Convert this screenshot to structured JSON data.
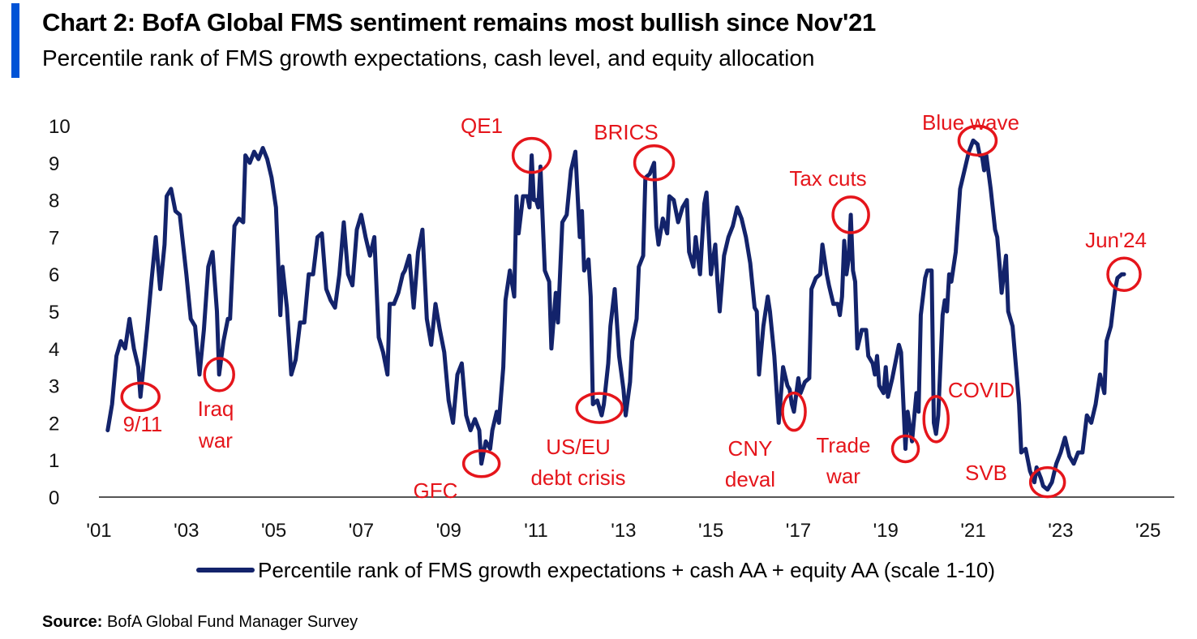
{
  "header": {
    "title": "Chart 2: BofA Global FMS sentiment remains most bullish since Nov'21",
    "subtitle": "Percentile rank of FMS growth expectations, cash level, and equity allocation",
    "accent_color": "#0053d6"
  },
  "footer": {
    "source_label": "Source:",
    "source_text": "BofA Global Fund Manager Survey"
  },
  "chart_data": {
    "type": "line",
    "title": "Chart 2: BofA Global FMS sentiment remains most bullish since Nov'21",
    "subtitle": "Percentile rank of FMS growth expectations, cash level, and equity allocation",
    "xlabel": "",
    "ylabel": "",
    "ylim": [
      0,
      10
    ],
    "xlim": [
      2001,
      2025.6
    ],
    "x_ticks": [
      2001,
      2003,
      2005,
      2007,
      2009,
      2011,
      2013,
      2015,
      2017,
      2019,
      2021,
      2023,
      2025
    ],
    "x_tick_labels": [
      "'01",
      "'03",
      "'05",
      "'07",
      "'09",
      "'11",
      "'13",
      "'15",
      "'17",
      "'19",
      "'21",
      "'23",
      "'25"
    ],
    "y_ticks": [
      0,
      1,
      2,
      3,
      4,
      5,
      6,
      7,
      8,
      9,
      10
    ],
    "grid": false,
    "legend_position": "bottom",
    "line_color": "#13236b",
    "annotation_color": "#e5151b",
    "series": [
      {
        "name": "Percentile rank of FMS growth expectations + cash AA + equity AA (scale 1-10)",
        "points": [
          [
            2001.2,
            1.8
          ],
          [
            2001.3,
            2.5
          ],
          [
            2001.4,
            3.8
          ],
          [
            2001.5,
            4.2
          ],
          [
            2001.6,
            4.0
          ],
          [
            2001.7,
            4.8
          ],
          [
            2001.8,
            4.0
          ],
          [
            2001.9,
            3.5
          ],
          [
            2001.95,
            2.7
          ],
          [
            2002.0,
            3.3
          ],
          [
            2002.1,
            4.5
          ],
          [
            2002.2,
            5.8
          ],
          [
            2002.3,
            7.0
          ],
          [
            2002.4,
            5.6
          ],
          [
            2002.5,
            6.8
          ],
          [
            2002.55,
            8.1
          ],
          [
            2002.65,
            8.3
          ],
          [
            2002.75,
            7.7
          ],
          [
            2002.85,
            7.6
          ],
          [
            2003.0,
            6.0
          ],
          [
            2003.1,
            4.8
          ],
          [
            2003.2,
            4.6
          ],
          [
            2003.3,
            3.3
          ],
          [
            2003.4,
            4.5
          ],
          [
            2003.5,
            6.2
          ],
          [
            2003.6,
            6.6
          ],
          [
            2003.7,
            5.0
          ],
          [
            2003.75,
            3.3
          ],
          [
            2003.85,
            4.2
          ],
          [
            2003.95,
            4.8
          ],
          [
            2004.0,
            4.8
          ],
          [
            2004.1,
            7.3
          ],
          [
            2004.2,
            7.5
          ],
          [
            2004.3,
            7.4
          ],
          [
            2004.35,
            9.2
          ],
          [
            2004.45,
            9.0
          ],
          [
            2004.55,
            9.3
          ],
          [
            2004.65,
            9.1
          ],
          [
            2004.75,
            9.4
          ],
          [
            2004.85,
            9.1
          ],
          [
            2004.95,
            8.6
          ],
          [
            2005.05,
            7.8
          ],
          [
            2005.15,
            4.9
          ],
          [
            2005.2,
            6.2
          ],
          [
            2005.3,
            5.1
          ],
          [
            2005.4,
            3.3
          ],
          [
            2005.5,
            3.7
          ],
          [
            2005.6,
            4.7
          ],
          [
            2005.7,
            4.7
          ],
          [
            2005.8,
            6.0
          ],
          [
            2005.9,
            6.0
          ],
          [
            2006.0,
            7.0
          ],
          [
            2006.1,
            7.1
          ],
          [
            2006.2,
            5.6
          ],
          [
            2006.3,
            5.3
          ],
          [
            2006.4,
            5.1
          ],
          [
            2006.5,
            6.0
          ],
          [
            2006.6,
            7.4
          ],
          [
            2006.7,
            6.0
          ],
          [
            2006.8,
            5.7
          ],
          [
            2006.9,
            7.2
          ],
          [
            2006.95,
            7.4
          ],
          [
            2007.0,
            7.6
          ],
          [
            2007.1,
            7.0
          ],
          [
            2007.2,
            6.5
          ],
          [
            2007.3,
            7.0
          ],
          [
            2007.4,
            4.3
          ],
          [
            2007.5,
            3.9
          ],
          [
            2007.6,
            3.3
          ],
          [
            2007.65,
            5.2
          ],
          [
            2007.75,
            5.2
          ],
          [
            2007.85,
            5.5
          ],
          [
            2007.95,
            6.0
          ],
          [
            2008.0,
            6.1
          ],
          [
            2008.1,
            6.5
          ],
          [
            2008.2,
            5.1
          ],
          [
            2008.3,
            6.6
          ],
          [
            2008.4,
            7.2
          ],
          [
            2008.5,
            4.8
          ],
          [
            2008.6,
            4.1
          ],
          [
            2008.7,
            5.2
          ],
          [
            2008.8,
            4.5
          ],
          [
            2008.9,
            3.9
          ],
          [
            2009.0,
            2.6
          ],
          [
            2009.1,
            2.0
          ],
          [
            2009.2,
            3.3
          ],
          [
            2009.3,
            3.6
          ],
          [
            2009.4,
            2.2
          ],
          [
            2009.5,
            1.8
          ],
          [
            2009.6,
            2.1
          ],
          [
            2009.7,
            1.8
          ],
          [
            2009.75,
            0.9
          ],
          [
            2009.85,
            1.5
          ],
          [
            2009.95,
            1.3
          ],
          [
            2010.0,
            1.8
          ],
          [
            2010.1,
            2.3
          ],
          [
            2010.15,
            2.0
          ],
          [
            2010.25,
            3.5
          ],
          [
            2010.3,
            5.3
          ],
          [
            2010.4,
            6.1
          ],
          [
            2010.5,
            5.4
          ],
          [
            2010.55,
            8.1
          ],
          [
            2010.6,
            7.1
          ],
          [
            2010.7,
            8.1
          ],
          [
            2010.8,
            8.1
          ],
          [
            2010.85,
            7.8
          ],
          [
            2010.9,
            9.2
          ],
          [
            2010.95,
            8.0
          ],
          [
            2011.0,
            8.0
          ],
          [
            2011.05,
            7.8
          ],
          [
            2011.1,
            8.9
          ],
          [
            2011.2,
            6.1
          ],
          [
            2011.3,
            5.8
          ],
          [
            2011.35,
            4.0
          ],
          [
            2011.45,
            5.5
          ],
          [
            2011.5,
            4.7
          ],
          [
            2011.6,
            7.4
          ],
          [
            2011.7,
            7.6
          ],
          [
            2011.8,
            8.8
          ],
          [
            2011.9,
            9.3
          ],
          [
            2012.0,
            7.0
          ],
          [
            2012.05,
            7.7
          ],
          [
            2012.1,
            6.1
          ],
          [
            2012.2,
            6.4
          ],
          [
            2012.25,
            5.4
          ],
          [
            2012.3,
            2.5
          ],
          [
            2012.4,
            2.6
          ],
          [
            2012.5,
            2.2
          ],
          [
            2012.55,
            2.5
          ],
          [
            2012.65,
            3.6
          ],
          [
            2012.7,
            4.6
          ],
          [
            2012.8,
            5.6
          ],
          [
            2012.9,
            3.8
          ],
          [
            2013.0,
            2.9
          ],
          [
            2013.05,
            2.2
          ],
          [
            2013.15,
            3.1
          ],
          [
            2013.2,
            4.2
          ],
          [
            2013.3,
            4.8
          ],
          [
            2013.35,
            6.2
          ],
          [
            2013.45,
            6.5
          ],
          [
            2013.5,
            8.6
          ],
          [
            2013.6,
            8.7
          ],
          [
            2013.7,
            9.0
          ],
          [
            2013.75,
            7.3
          ],
          [
            2013.8,
            6.8
          ],
          [
            2013.9,
            7.5
          ],
          [
            2014.0,
            7.1
          ],
          [
            2014.05,
            8.1
          ],
          [
            2014.15,
            8.0
          ],
          [
            2014.25,
            7.4
          ],
          [
            2014.35,
            7.8
          ],
          [
            2014.45,
            8.0
          ],
          [
            2014.5,
            6.6
          ],
          [
            2014.6,
            6.2
          ],
          [
            2014.65,
            7.0
          ],
          [
            2014.75,
            6.0
          ],
          [
            2014.85,
            7.9
          ],
          [
            2014.9,
            8.2
          ],
          [
            2015.0,
            6.0
          ],
          [
            2015.1,
            6.8
          ],
          [
            2015.15,
            5.8
          ],
          [
            2015.2,
            5.0
          ],
          [
            2015.3,
            6.5
          ],
          [
            2015.4,
            7.0
          ],
          [
            2015.5,
            7.3
          ],
          [
            2015.6,
            7.8
          ],
          [
            2015.7,
            7.5
          ],
          [
            2015.8,
            7.0
          ],
          [
            2015.9,
            6.3
          ],
          [
            2016.0,
            5.1
          ],
          [
            2016.05,
            5.0
          ],
          [
            2016.1,
            3.3
          ],
          [
            2016.2,
            4.6
          ],
          [
            2016.3,
            5.4
          ],
          [
            2016.35,
            5.0
          ],
          [
            2016.45,
            3.8
          ],
          [
            2016.55,
            2.0
          ],
          [
            2016.65,
            3.5
          ],
          [
            2016.75,
            3.0
          ],
          [
            2016.8,
            2.9
          ],
          [
            2016.85,
            2.5
          ],
          [
            2016.9,
            2.3
          ],
          [
            2017.0,
            3.2
          ],
          [
            2017.05,
            2.8
          ],
          [
            2017.15,
            3.1
          ],
          [
            2017.25,
            3.2
          ],
          [
            2017.3,
            5.6
          ],
          [
            2017.4,
            5.9
          ],
          [
            2017.5,
            6.0
          ],
          [
            2017.55,
            6.8
          ],
          [
            2017.65,
            6.0
          ],
          [
            2017.7,
            5.7
          ],
          [
            2017.8,
            5.2
          ],
          [
            2017.9,
            5.2
          ],
          [
            2017.95,
            4.9
          ],
          [
            2018.0,
            5.4
          ],
          [
            2018.05,
            6.9
          ],
          [
            2018.1,
            6.0
          ],
          [
            2018.15,
            6.4
          ],
          [
            2018.2,
            7.6
          ],
          [
            2018.25,
            6.1
          ],
          [
            2018.3,
            5.8
          ],
          [
            2018.35,
            4.0
          ],
          [
            2018.45,
            4.5
          ],
          [
            2018.55,
            4.5
          ],
          [
            2018.6,
            3.8
          ],
          [
            2018.7,
            3.6
          ],
          [
            2018.75,
            3.3
          ],
          [
            2018.8,
            3.8
          ],
          [
            2018.85,
            3.0
          ],
          [
            2018.95,
            2.8
          ],
          [
            2019.0,
            3.5
          ],
          [
            2019.05,
            2.7
          ],
          [
            2019.15,
            3.2
          ],
          [
            2019.25,
            3.8
          ],
          [
            2019.3,
            4.1
          ],
          [
            2019.35,
            3.9
          ],
          [
            2019.45,
            1.3
          ],
          [
            2019.5,
            2.3
          ],
          [
            2019.6,
            1.5
          ],
          [
            2019.7,
            2.8
          ],
          [
            2019.75,
            2.3
          ],
          [
            2019.8,
            4.9
          ],
          [
            2019.9,
            5.9
          ],
          [
            2019.95,
            6.1
          ],
          [
            2020.05,
            6.1
          ],
          [
            2020.1,
            2.0
          ],
          [
            2020.15,
            1.7
          ],
          [
            2020.2,
            2.2
          ],
          [
            2020.3,
            4.9
          ],
          [
            2020.35,
            5.3
          ],
          [
            2020.4,
            5.0
          ],
          [
            2020.45,
            6.0
          ],
          [
            2020.5,
            5.8
          ],
          [
            2020.6,
            6.6
          ],
          [
            2020.7,
            8.3
          ],
          [
            2020.8,
            8.8
          ],
          [
            2020.9,
            9.3
          ],
          [
            2021.0,
            9.6
          ],
          [
            2021.1,
            9.5
          ],
          [
            2021.15,
            9.2
          ],
          [
            2021.2,
            9.2
          ],
          [
            2021.25,
            8.8
          ],
          [
            2021.3,
            9.2
          ],
          [
            2021.4,
            8.3
          ],
          [
            2021.5,
            7.2
          ],
          [
            2021.55,
            7.0
          ],
          [
            2021.6,
            6.3
          ],
          [
            2021.65,
            5.5
          ],
          [
            2021.75,
            6.5
          ],
          [
            2021.8,
            5.0
          ],
          [
            2021.9,
            4.6
          ],
          [
            2022.0,
            3.2
          ],
          [
            2022.05,
            2.5
          ],
          [
            2022.1,
            1.2
          ],
          [
            2022.2,
            1.3
          ],
          [
            2022.3,
            0.7
          ],
          [
            2022.4,
            0.4
          ],
          [
            2022.45,
            0.8
          ],
          [
            2022.55,
            0.5
          ],
          [
            2022.6,
            0.3
          ],
          [
            2022.7,
            0.2
          ],
          [
            2022.8,
            0.4
          ],
          [
            2022.9,
            0.9
          ],
          [
            2023.0,
            1.2
          ],
          [
            2023.1,
            1.6
          ],
          [
            2023.2,
            1.1
          ],
          [
            2023.3,
            0.9
          ],
          [
            2023.4,
            1.2
          ],
          [
            2023.5,
            1.2
          ],
          [
            2023.6,
            2.2
          ],
          [
            2023.7,
            2.0
          ],
          [
            2023.8,
            2.5
          ],
          [
            2023.9,
            3.3
          ],
          [
            2024.0,
            2.8
          ],
          [
            2024.05,
            4.2
          ],
          [
            2024.15,
            4.6
          ],
          [
            2024.25,
            5.6
          ],
          [
            2024.3,
            5.9
          ],
          [
            2024.4,
            6.0
          ],
          [
            2024.45,
            6.0
          ]
        ]
      }
    ],
    "annotations": [
      {
        "label": "9/11",
        "x": 2001.95,
        "y": 2.7
      },
      {
        "label": "Iraq war",
        "x": 2003.75,
        "y": 3.3
      },
      {
        "label": "GFC",
        "x": 2009.75,
        "y": 0.9
      },
      {
        "label": "QE1",
        "x": 2010.9,
        "y": 9.2
      },
      {
        "label": "US/EU debt crisis",
        "x": 2012.45,
        "y": 2.4
      },
      {
        "label": "BRICS",
        "x": 2013.7,
        "y": 9.0
      },
      {
        "label": "CNY deval",
        "x": 2016.9,
        "y": 2.3
      },
      {
        "label": "Tax cuts",
        "x": 2018.2,
        "y": 7.6
      },
      {
        "label": "Trade war",
        "x": 2019.45,
        "y": 1.3
      },
      {
        "label": "COVID",
        "x": 2020.15,
        "y": 2.1
      },
      {
        "label": "Blue wave",
        "x": 2021.1,
        "y": 9.6
      },
      {
        "label": "SVB",
        "x": 2022.7,
        "y": 0.4
      },
      {
        "label": "Jun'24",
        "x": 2024.45,
        "y": 6.0
      }
    ]
  }
}
